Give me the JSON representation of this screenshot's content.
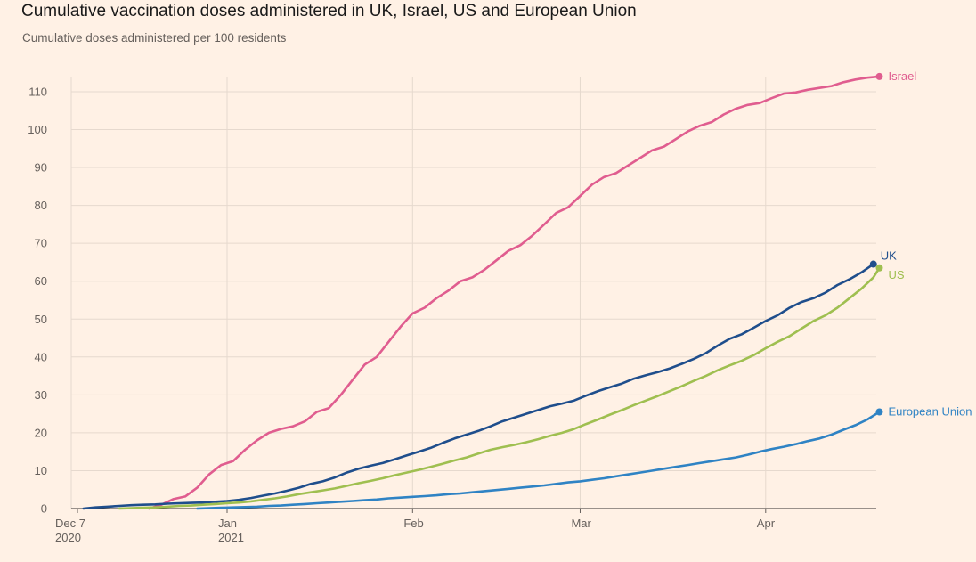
{
  "chart_data": {
    "type": "line",
    "title": "Cumulative vaccination doses administered in UK, Israel, US and European Union",
    "subtitle": "Cumulative doses administered per 100 residents",
    "xlabel": "",
    "ylabel": "",
    "ylim": [
      0,
      110
    ],
    "yticks": [
      0,
      10,
      20,
      30,
      40,
      50,
      60,
      70,
      80,
      90,
      100,
      110
    ],
    "xlim": [
      "2020-12-07",
      "2021-04-20"
    ],
    "xticks": [
      {
        "date": "2020-12-07",
        "label": "Dec 7",
        "sublabel": "2020"
      },
      {
        "date": "2021-01-01",
        "label": "Jan",
        "sublabel": "2021"
      },
      {
        "date": "2021-02-01",
        "label": "Feb",
        "sublabel": ""
      },
      {
        "date": "2021-03-01",
        "label": "Mar",
        "sublabel": ""
      },
      {
        "date": "2021-04-01",
        "label": "Apr",
        "sublabel": ""
      }
    ],
    "grid": true,
    "legend": "direct labels at line ends",
    "series": [
      {
        "name": "Israel",
        "color": "#e05d8f",
        "points": [
          [
            "2020-12-19",
            0
          ],
          [
            "2020-12-21",
            1
          ],
          [
            "2020-12-23",
            2.5
          ],
          [
            "2020-12-25",
            3.2
          ],
          [
            "2020-12-27",
            5.5
          ],
          [
            "2020-12-29",
            9
          ],
          [
            "2020-12-31",
            11.5
          ],
          [
            "2021-01-02",
            12.5
          ],
          [
            "2021-01-04",
            15.5
          ],
          [
            "2021-01-06",
            18
          ],
          [
            "2021-01-08",
            20
          ],
          [
            "2021-01-10",
            21
          ],
          [
            "2021-01-12",
            21.7
          ],
          [
            "2021-01-14",
            23
          ],
          [
            "2021-01-16",
            25.5
          ],
          [
            "2021-01-18",
            26.5
          ],
          [
            "2021-01-20",
            30
          ],
          [
            "2021-01-22",
            34
          ],
          [
            "2021-01-24",
            38
          ],
          [
            "2021-01-26",
            40
          ],
          [
            "2021-01-28",
            44
          ],
          [
            "2021-01-30",
            48
          ],
          [
            "2021-02-01",
            51.5
          ],
          [
            "2021-02-03",
            53
          ],
          [
            "2021-02-05",
            55.5
          ],
          [
            "2021-02-07",
            57.5
          ],
          [
            "2021-02-09",
            60
          ],
          [
            "2021-02-11",
            61
          ],
          [
            "2021-02-13",
            63
          ],
          [
            "2021-02-15",
            65.5
          ],
          [
            "2021-02-17",
            68
          ],
          [
            "2021-02-19",
            69.5
          ],
          [
            "2021-02-21",
            72
          ],
          [
            "2021-02-23",
            75
          ],
          [
            "2021-02-25",
            78
          ],
          [
            "2021-02-27",
            79.5
          ],
          [
            "2021-03-01",
            82.5
          ],
          [
            "2021-03-03",
            85.5
          ],
          [
            "2021-03-05",
            87.5
          ],
          [
            "2021-03-07",
            88.5
          ],
          [
            "2021-03-09",
            90.5
          ],
          [
            "2021-03-11",
            92.5
          ],
          [
            "2021-03-13",
            94.5
          ],
          [
            "2021-03-15",
            95.5
          ],
          [
            "2021-03-17",
            97.5
          ],
          [
            "2021-03-19",
            99.5
          ],
          [
            "2021-03-21",
            101
          ],
          [
            "2021-03-23",
            102
          ],
          [
            "2021-03-25",
            104
          ],
          [
            "2021-03-27",
            105.5
          ],
          [
            "2021-03-29",
            106.5
          ],
          [
            "2021-03-31",
            107
          ],
          [
            "2021-04-02",
            108.3
          ],
          [
            "2021-04-04",
            109.5
          ],
          [
            "2021-04-06",
            109.8
          ],
          [
            "2021-04-08",
            110.5
          ],
          [
            "2021-04-10",
            111
          ],
          [
            "2021-04-12",
            111.5
          ],
          [
            "2021-04-14",
            112.5
          ],
          [
            "2021-04-16",
            113.2
          ],
          [
            "2021-04-18",
            113.7
          ],
          [
            "2021-04-20",
            114
          ]
        ]
      },
      {
        "name": "UK",
        "color": "#1f4e8c",
        "points": [
          [
            "2020-12-08",
            0
          ],
          [
            "2020-12-10",
            0.3
          ],
          [
            "2020-12-12",
            0.5
          ],
          [
            "2020-12-14",
            0.7
          ],
          [
            "2020-12-16",
            0.9
          ],
          [
            "2020-12-18",
            1
          ],
          [
            "2020-12-20",
            1.1
          ],
          [
            "2020-12-22",
            1.3
          ],
          [
            "2020-12-24",
            1.4
          ],
          [
            "2020-12-26",
            1.5
          ],
          [
            "2020-12-28",
            1.6
          ],
          [
            "2020-12-30",
            1.8
          ],
          [
            "2021-01-01",
            2
          ],
          [
            "2021-01-03",
            2.3
          ],
          [
            "2021-01-05",
            2.8
          ],
          [
            "2021-01-07",
            3.4
          ],
          [
            "2021-01-09",
            4
          ],
          [
            "2021-01-11",
            4.7
          ],
          [
            "2021-01-13",
            5.5
          ],
          [
            "2021-01-15",
            6.5
          ],
          [
            "2021-01-17",
            7.2
          ],
          [
            "2021-01-19",
            8.2
          ],
          [
            "2021-01-21",
            9.5
          ],
          [
            "2021-01-23",
            10.5
          ],
          [
            "2021-01-25",
            11.3
          ],
          [
            "2021-01-27",
            12
          ],
          [
            "2021-01-29",
            13
          ],
          [
            "2021-01-31",
            14
          ],
          [
            "2021-02-02",
            15
          ],
          [
            "2021-02-04",
            16
          ],
          [
            "2021-02-06",
            17.3
          ],
          [
            "2021-02-08",
            18.5
          ],
          [
            "2021-02-10",
            19.5
          ],
          [
            "2021-02-12",
            20.5
          ],
          [
            "2021-02-14",
            21.7
          ],
          [
            "2021-02-16",
            23
          ],
          [
            "2021-02-18",
            24
          ],
          [
            "2021-02-20",
            25
          ],
          [
            "2021-02-22",
            26
          ],
          [
            "2021-02-24",
            27
          ],
          [
            "2021-02-26",
            27.7
          ],
          [
            "2021-02-28",
            28.5
          ],
          [
            "2021-03-02",
            29.8
          ],
          [
            "2021-03-04",
            31
          ],
          [
            "2021-03-06",
            32
          ],
          [
            "2021-03-08",
            33
          ],
          [
            "2021-03-10",
            34.3
          ],
          [
            "2021-03-12",
            35.2
          ],
          [
            "2021-03-14",
            36
          ],
          [
            "2021-03-16",
            37
          ],
          [
            "2021-03-18",
            38.2
          ],
          [
            "2021-03-20",
            39.5
          ],
          [
            "2021-03-22",
            41
          ],
          [
            "2021-03-24",
            43
          ],
          [
            "2021-03-26",
            44.8
          ],
          [
            "2021-03-28",
            46
          ],
          [
            "2021-03-30",
            47.7
          ],
          [
            "2021-04-01",
            49.5
          ],
          [
            "2021-04-03",
            51
          ],
          [
            "2021-04-05",
            53
          ],
          [
            "2021-04-07",
            54.5
          ],
          [
            "2021-04-09",
            55.5
          ],
          [
            "2021-04-11",
            57
          ],
          [
            "2021-04-13",
            59
          ],
          [
            "2021-04-15",
            60.5
          ],
          [
            "2021-04-17",
            62.3
          ],
          [
            "2021-04-19",
            64.5
          ]
        ]
      },
      {
        "name": "US",
        "color": "#9fbf50",
        "points": [
          [
            "2020-12-14",
            0
          ],
          [
            "2020-12-16",
            0.1
          ],
          [
            "2020-12-18",
            0.2
          ],
          [
            "2020-12-20",
            0.3
          ],
          [
            "2020-12-22",
            0.5
          ],
          [
            "2020-12-24",
            0.7
          ],
          [
            "2020-12-26",
            0.8
          ],
          [
            "2020-12-28",
            1
          ],
          [
            "2020-12-30",
            1.2
          ],
          [
            "2021-01-01",
            1.4
          ],
          [
            "2021-01-03",
            1.6
          ],
          [
            "2021-01-05",
            1.9
          ],
          [
            "2021-01-07",
            2.3
          ],
          [
            "2021-01-09",
            2.7
          ],
          [
            "2021-01-11",
            3.2
          ],
          [
            "2021-01-13",
            3.8
          ],
          [
            "2021-01-15",
            4.3
          ],
          [
            "2021-01-17",
            4.8
          ],
          [
            "2021-01-19",
            5.3
          ],
          [
            "2021-01-21",
            6
          ],
          [
            "2021-01-23",
            6.7
          ],
          [
            "2021-01-25",
            7.3
          ],
          [
            "2021-01-27",
            8
          ],
          [
            "2021-01-29",
            8.8
          ],
          [
            "2021-01-31",
            9.5
          ],
          [
            "2021-02-02",
            10.2
          ],
          [
            "2021-02-04",
            11
          ],
          [
            "2021-02-06",
            11.8
          ],
          [
            "2021-02-08",
            12.7
          ],
          [
            "2021-02-10",
            13.5
          ],
          [
            "2021-02-12",
            14.5
          ],
          [
            "2021-02-14",
            15.5
          ],
          [
            "2021-02-16",
            16.2
          ],
          [
            "2021-02-18",
            16.8
          ],
          [
            "2021-02-20",
            17.5
          ],
          [
            "2021-02-22",
            18.3
          ],
          [
            "2021-02-24",
            19.2
          ],
          [
            "2021-02-26",
            20
          ],
          [
            "2021-02-28",
            21
          ],
          [
            "2021-03-02",
            22.3
          ],
          [
            "2021-03-04",
            23.5
          ],
          [
            "2021-03-06",
            24.8
          ],
          [
            "2021-03-08",
            26
          ],
          [
            "2021-03-10",
            27.3
          ],
          [
            "2021-03-12",
            28.5
          ],
          [
            "2021-03-14",
            29.7
          ],
          [
            "2021-03-16",
            31
          ],
          [
            "2021-03-18",
            32.3
          ],
          [
            "2021-03-20",
            33.7
          ],
          [
            "2021-03-22",
            35
          ],
          [
            "2021-03-24",
            36.5
          ],
          [
            "2021-03-26",
            37.8
          ],
          [
            "2021-03-28",
            39
          ],
          [
            "2021-03-30",
            40.5
          ],
          [
            "2021-04-01",
            42.3
          ],
          [
            "2021-04-03",
            44
          ],
          [
            "2021-04-05",
            45.5
          ],
          [
            "2021-04-07",
            47.5
          ],
          [
            "2021-04-09",
            49.5
          ],
          [
            "2021-04-11",
            51
          ],
          [
            "2021-04-13",
            53
          ],
          [
            "2021-04-15",
            55.5
          ],
          [
            "2021-04-17",
            58
          ],
          [
            "2021-04-19",
            61
          ],
          [
            "2021-04-20",
            63.5
          ]
        ]
      },
      {
        "name": "European Union",
        "color": "#2f83c4",
        "points": [
          [
            "2020-12-27",
            0
          ],
          [
            "2020-12-29",
            0.1
          ],
          [
            "2020-12-31",
            0.2
          ],
          [
            "2021-01-02",
            0.3
          ],
          [
            "2021-01-04",
            0.4
          ],
          [
            "2021-01-06",
            0.5
          ],
          [
            "2021-01-08",
            0.7
          ],
          [
            "2021-01-10",
            0.8
          ],
          [
            "2021-01-12",
            1
          ],
          [
            "2021-01-14",
            1.2
          ],
          [
            "2021-01-16",
            1.4
          ],
          [
            "2021-01-18",
            1.6
          ],
          [
            "2021-01-20",
            1.8
          ],
          [
            "2021-01-22",
            2
          ],
          [
            "2021-01-24",
            2.2
          ],
          [
            "2021-01-26",
            2.4
          ],
          [
            "2021-01-28",
            2.7
          ],
          [
            "2021-01-30",
            2.9
          ],
          [
            "2021-02-01",
            3.1
          ],
          [
            "2021-02-03",
            3.3
          ],
          [
            "2021-02-05",
            3.5
          ],
          [
            "2021-02-07",
            3.8
          ],
          [
            "2021-02-09",
            4
          ],
          [
            "2021-02-11",
            4.3
          ],
          [
            "2021-02-13",
            4.6
          ],
          [
            "2021-02-15",
            4.9
          ],
          [
            "2021-02-17",
            5.2
          ],
          [
            "2021-02-19",
            5.5
          ],
          [
            "2021-02-21",
            5.8
          ],
          [
            "2021-02-23",
            6.1
          ],
          [
            "2021-02-25",
            6.5
          ],
          [
            "2021-02-27",
            6.9
          ],
          [
            "2021-03-01",
            7.2
          ],
          [
            "2021-03-03",
            7.6
          ],
          [
            "2021-03-05",
            8
          ],
          [
            "2021-03-07",
            8.5
          ],
          [
            "2021-03-09",
            9
          ],
          [
            "2021-03-11",
            9.5
          ],
          [
            "2021-03-13",
            10
          ],
          [
            "2021-03-15",
            10.5
          ],
          [
            "2021-03-17",
            11
          ],
          [
            "2021-03-19",
            11.5
          ],
          [
            "2021-03-21",
            12
          ],
          [
            "2021-03-23",
            12.5
          ],
          [
            "2021-03-25",
            13
          ],
          [
            "2021-03-27",
            13.5
          ],
          [
            "2021-03-29",
            14.2
          ],
          [
            "2021-03-31",
            15
          ],
          [
            "2021-04-02",
            15.7
          ],
          [
            "2021-04-04",
            16.3
          ],
          [
            "2021-04-06",
            17
          ],
          [
            "2021-04-08",
            17.8
          ],
          [
            "2021-04-10",
            18.5
          ],
          [
            "2021-04-12",
            19.5
          ],
          [
            "2021-04-14",
            20.8
          ],
          [
            "2021-04-16",
            22
          ],
          [
            "2021-04-18",
            23.5
          ],
          [
            "2021-04-20",
            25.5
          ]
        ]
      }
    ]
  }
}
